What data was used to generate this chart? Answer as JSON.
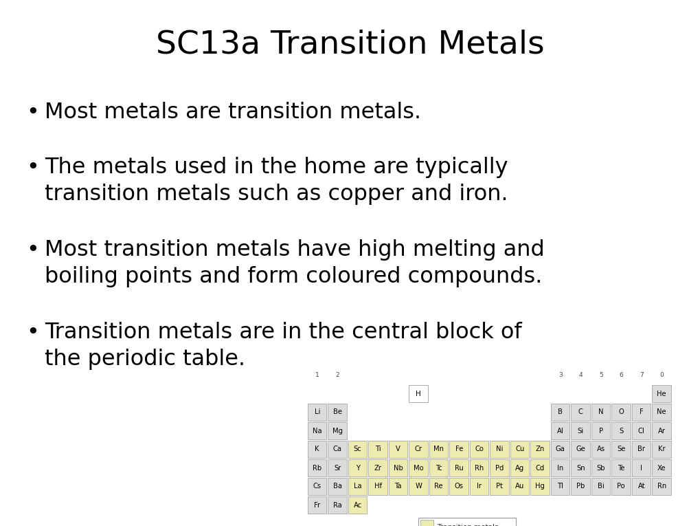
{
  "title": "SC13a Transition Metals",
  "title_fontsize": 34,
  "bullet_points": [
    "Most metals are transition metals.",
    "The metals used in the home are typically\ntransition metals such as copper and iron.",
    "Most transition metals have high melting and\nboiling points and form coloured compounds.",
    "Transition metals are in the central block of\nthe periodic table."
  ],
  "background_color": "#ffffff",
  "text_color": "#000000",
  "table_color_transition": "#eeebb0",
  "table_color_normal": "#dcdcdc",
  "table_color_white": "#ffffff",
  "table_border": "#999999"
}
